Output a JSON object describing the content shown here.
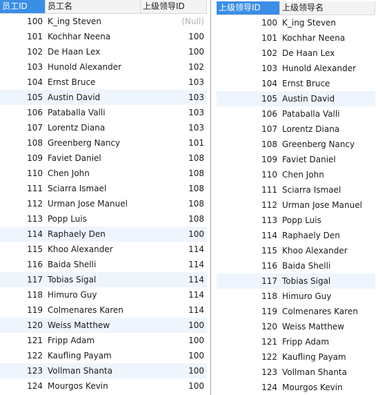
{
  "left_grid": {
    "headers": [
      "员工ID",
      "员工名",
      "上级领导ID"
    ],
    "rows": [
      {
        "id": "100",
        "name": "K_ing Steven",
        "mgr": "(Null)"
      },
      {
        "id": "101",
        "name": "Kochhar Neena",
        "mgr": "100"
      },
      {
        "id": "102",
        "name": "De Haan Lex",
        "mgr": "100"
      },
      {
        "id": "103",
        "name": "Hunold Alexander",
        "mgr": "102"
      },
      {
        "id": "104",
        "name": "Ernst Bruce",
        "mgr": "103"
      },
      {
        "id": "105",
        "name": "Austin David",
        "mgr": "103"
      },
      {
        "id": "106",
        "name": "Pataballa Valli",
        "mgr": "103"
      },
      {
        "id": "107",
        "name": "Lorentz Diana",
        "mgr": "103"
      },
      {
        "id": "108",
        "name": "Greenberg Nancy",
        "mgr": "101"
      },
      {
        "id": "109",
        "name": "Faviet Daniel",
        "mgr": "108"
      },
      {
        "id": "110",
        "name": "Chen John",
        "mgr": "108"
      },
      {
        "id": "111",
        "name": "Sciarra Ismael",
        "mgr": "108"
      },
      {
        "id": "112",
        "name": "Urman Jose Manuel",
        "mgr": "108"
      },
      {
        "id": "113",
        "name": "Popp Luis",
        "mgr": "108"
      },
      {
        "id": "114",
        "name": "Raphaely Den",
        "mgr": "100"
      },
      {
        "id": "115",
        "name": "Khoo Alexander",
        "mgr": "114"
      },
      {
        "id": "116",
        "name": "Baida Shelli",
        "mgr": "114"
      },
      {
        "id": "117",
        "name": "Tobias Sigal",
        "mgr": "114"
      },
      {
        "id": "118",
        "name": "Himuro Guy",
        "mgr": "114"
      },
      {
        "id": "119",
        "name": "Colmenares Karen",
        "mgr": "114"
      },
      {
        "id": "120",
        "name": "Weiss Matthew",
        "mgr": "100"
      },
      {
        "id": "121",
        "name": "Fripp Adam",
        "mgr": "100"
      },
      {
        "id": "122",
        "name": "Kaufling Payam",
        "mgr": "100"
      },
      {
        "id": "123",
        "name": "Vollman Shanta",
        "mgr": "100"
      },
      {
        "id": "124",
        "name": "Mourgos Kevin",
        "mgr": "100"
      }
    ]
  },
  "right_grid": {
    "headers": [
      "上级领导ID",
      "上级领导名"
    ],
    "rows": [
      {
        "id": "100",
        "name": "K_ing Steven"
      },
      {
        "id": "101",
        "name": "Kochhar Neena"
      },
      {
        "id": "102",
        "name": "De Haan Lex"
      },
      {
        "id": "103",
        "name": "Hunold Alexander"
      },
      {
        "id": "104",
        "name": "Ernst Bruce"
      },
      {
        "id": "105",
        "name": "Austin David"
      },
      {
        "id": "106",
        "name": "Pataballa Valli"
      },
      {
        "id": "107",
        "name": "Lorentz Diana"
      },
      {
        "id": "108",
        "name": "Greenberg Nancy"
      },
      {
        "id": "109",
        "name": "Faviet Daniel"
      },
      {
        "id": "110",
        "name": "Chen John"
      },
      {
        "id": "111",
        "name": "Sciarra Ismael"
      },
      {
        "id": "112",
        "name": "Urman Jose Manuel"
      },
      {
        "id": "113",
        "name": "Popp Luis"
      },
      {
        "id": "114",
        "name": "Raphaely Den"
      },
      {
        "id": "115",
        "name": "Khoo Alexander"
      },
      {
        "id": "116",
        "name": "Baida Shelli"
      },
      {
        "id": "117",
        "name": "Tobias Sigal"
      },
      {
        "id": "118",
        "name": "Himuro Guy"
      },
      {
        "id": "119",
        "name": "Colmenares Karen"
      },
      {
        "id": "120",
        "name": "Weiss Matthew"
      },
      {
        "id": "121",
        "name": "Fripp Adam"
      },
      {
        "id": "122",
        "name": "Kaufling Payam"
      },
      {
        "id": "123",
        "name": "Vollman Shanta"
      },
      {
        "id": "124",
        "name": "Mourgos Kevin"
      }
    ]
  },
  "colors": {
    "header_selected": "#3a8ee6",
    "row_alt": "#eef5fc",
    "null_text": "#b0b0b0"
  }
}
